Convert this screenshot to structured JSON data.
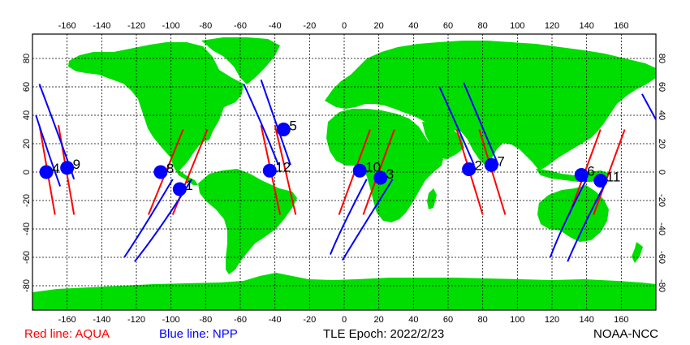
{
  "map": {
    "x_ticks_bottom": [
      "-160",
      "-140",
      "-120",
      "-100",
      "-80",
      "-60",
      "-40",
      "-20",
      "0",
      "20",
      "40",
      "60",
      "80",
      "100",
      "120",
      "140",
      "160"
    ],
    "x_ticks_top": [
      "-160",
      "-140",
      "-120",
      "-100",
      "-80",
      "-60",
      "-40",
      "-20",
      "0",
      "20",
      "40",
      "60",
      "80",
      "100",
      "120",
      "140",
      "160"
    ],
    "y_ticks": [
      "80",
      "60",
      "40",
      "20",
      "0",
      "-20",
      "-40",
      "-60",
      "-80"
    ],
    "colors": {
      "land": "#00dd00",
      "ocean": "#ffffff",
      "aqua_line": "#ff0000",
      "npp_line": "#0000ff",
      "marker": "#0000ff",
      "grid": "#000000"
    },
    "passes": [
      {
        "satellite": "AQUA",
        "lon": [
          -176,
          -167
        ],
        "lat": [
          33,
          -30
        ]
      },
      {
        "satellite": "AQUA",
        "lon": [
          -165,
          -156
        ],
        "lat": [
          33,
          -30
        ]
      },
      {
        "satellite": "AQUA",
        "lon": [
          -93,
          -113
        ],
        "lat": [
          30,
          -30
        ]
      },
      {
        "satellite": "AQUA",
        "lon": [
          -79,
          -99
        ],
        "lat": [
          30,
          -30
        ]
      },
      {
        "satellite": "AQUA",
        "lon": [
          -48,
          -37
        ],
        "lat": [
          33,
          -30
        ]
      },
      {
        "satellite": "AQUA",
        "lon": [
          -40,
          -28
        ],
        "lat": [
          33,
          -30
        ]
      },
      {
        "satellite": "AQUA",
        "lon": [
          15,
          -3
        ],
        "lat": [
          30,
          -30
        ]
      },
      {
        "satellite": "AQUA",
        "lon": [
          29,
          11
        ],
        "lat": [
          30,
          -30
        ]
      },
      {
        "satellite": "AQUA",
        "lon": [
          65,
          80
        ],
        "lat": [
          30,
          -30
        ]
      },
      {
        "satellite": "AQUA",
        "lon": [
          78,
          93
        ],
        "lat": [
          30,
          -30
        ]
      },
      {
        "satellite": "AQUA",
        "lon": [
          148,
          130
        ],
        "lat": [
          30,
          -30
        ]
      },
      {
        "satellite": "AQUA",
        "lon": [
          162,
          144
        ],
        "lat": [
          30,
          -30
        ]
      },
      {
        "satellite": "NPP",
        "lon": [
          -178,
          -170,
          -164
        ],
        "lat": [
          40,
          10,
          -10
        ]
      },
      {
        "satellite": "NPP",
        "lon": [
          -176,
          -163,
          -156
        ],
        "lat": [
          62,
          20,
          -5
        ]
      },
      {
        "satellite": "NPP",
        "lon": [
          -99,
          -116,
          -127
        ],
        "lat": [
          -5,
          -40,
          -60
        ]
      },
      {
        "satellite": "NPP",
        "lon": [
          -88,
          -106,
          -121
        ],
        "lat": [
          -5,
          -40,
          -63
        ]
      },
      {
        "satellite": "NPP",
        "lon": [
          -58,
          -46,
          -38
        ],
        "lat": [
          62,
          30,
          5
        ]
      },
      {
        "satellite": "NPP",
        "lon": [
          -48,
          -38,
          -31
        ],
        "lat": [
          65,
          30,
          5
        ]
      },
      {
        "satellite": "NPP",
        "lon": [
          13,
          -2,
          -8
        ],
        "lat": [
          -5,
          -40,
          -58
        ]
      },
      {
        "satellite": "NPP",
        "lon": [
          28,
          10,
          -1
        ],
        "lat": [
          -5,
          -40,
          -62
        ]
      },
      {
        "satellite": "NPP",
        "lon": [
          55,
          68,
          75
        ],
        "lat": [
          60,
          25,
          5
        ]
      },
      {
        "satellite": "NPP",
        "lon": [
          69,
          82,
          89
        ],
        "lat": [
          63,
          25,
          5
        ]
      },
      {
        "satellite": "NPP",
        "lon": [
          140,
          125,
          119
        ],
        "lat": [
          -5,
          -40,
          -60
        ]
      },
      {
        "satellite": "NPP",
        "lon": [
          152,
          137,
          129
        ],
        "lat": [
          -5,
          -40,
          -63
        ]
      },
      {
        "satellite": "NPP",
        "lon": [
          172,
          180
        ],
        "lat": [
          55,
          37
        ]
      }
    ],
    "markers": [
      {
        "label": "1",
        "lon": -95,
        "lat": -12
      },
      {
        "label": "2",
        "lon": 72,
        "lat": 2
      },
      {
        "label": "3",
        "lon": 21,
        "lat": -4
      },
      {
        "label": "4",
        "lon": -172,
        "lat": 0
      },
      {
        "label": "5",
        "lon": -35,
        "lat": 30
      },
      {
        "label": "6",
        "lon": 137,
        "lat": -2
      },
      {
        "label": "7",
        "lon": 85,
        "lat": 5
      },
      {
        "label": "8",
        "lon": -106,
        "lat": 0
      },
      {
        "label": "9",
        "lon": -160,
        "lat": 3
      },
      {
        "label": "10",
        "lon": 9,
        "lat": 1
      },
      {
        "label": "11",
        "lon": 148,
        "lat": -6
      },
      {
        "label": "12",
        "lon": -43,
        "lat": 1
      }
    ]
  },
  "legend": {
    "aqua": "Red line: AQUA",
    "npp": "Blue line: NPP",
    "epoch": "TLE Epoch: 2022/2/23",
    "credit": "NOAA-NCC"
  }
}
